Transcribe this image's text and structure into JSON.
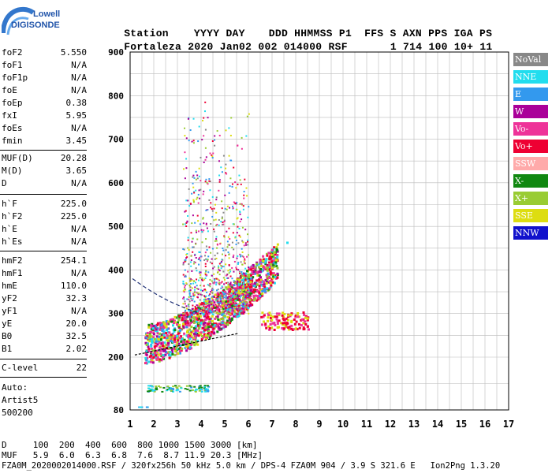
{
  "logo": {
    "line1": "Lowell",
    "line2": "DIGISONDE"
  },
  "header": {
    "labels": [
      "Station",
      "YYYY",
      "DAY",
      "DDD",
      "HHMMSS",
      "P1",
      "FFS",
      "S",
      "AXN",
      "PPS",
      "IGA",
      "PS"
    ],
    "values": [
      "Fortaleza",
      "2020",
      "Jan02",
      "002",
      "014000",
      "RSF",
      "",
      "1",
      "714",
      "100",
      "10+",
      "11"
    ]
  },
  "params_group1": [
    {
      "label": "foF2",
      "value": "5.550"
    },
    {
      "label": "foF1",
      "value": "N/A"
    },
    {
      "label": "foF1p",
      "value": "N/A"
    },
    {
      "label": "foE",
      "value": "N/A"
    },
    {
      "label": "foEp",
      "value": "0.38"
    },
    {
      "label": "fxI",
      "value": "5.95"
    },
    {
      "label": "foEs",
      "value": "N/A"
    },
    {
      "label": "fmin",
      "value": "3.45"
    }
  ],
  "params_group2": [
    {
      "label": "MUF(D)",
      "value": "20.28"
    },
    {
      "label": "M(D)",
      "value": "3.65"
    },
    {
      "label": "D",
      "value": "N/A"
    }
  ],
  "params_group3": [
    {
      "label": "h`F",
      "value": "225.0"
    },
    {
      "label": "h`F2",
      "value": "225.0"
    },
    {
      "label": "h`E",
      "value": "N/A"
    },
    {
      "label": "h`Es",
      "value": "N/A"
    }
  ],
  "params_group4": [
    {
      "label": "hmF2",
      "value": "254.1"
    },
    {
      "label": "hmF1",
      "value": "N/A"
    },
    {
      "label": "hmE",
      "value": "110.0"
    },
    {
      "label": "yF2",
      "value": "32.3"
    },
    {
      "label": "yF1",
      "value": "N/A"
    },
    {
      "label": "yE",
      "value": "20.0"
    },
    {
      "label": "B0",
      "value": "32.5"
    },
    {
      "label": "B1",
      "value": "2.02"
    }
  ],
  "params_group5": [
    {
      "label": "C-level",
      "value": "22"
    }
  ],
  "autoscaling": {
    "line1": "Auto:",
    "line2": "Artist5",
    "line3": "500200"
  },
  "axes": {
    "y_ticks": [
      "900",
      "800",
      "700",
      "600",
      "500",
      "400",
      "300",
      "200",
      "80"
    ],
    "x_ticks": [
      "1",
      "2",
      "3",
      "4",
      "5",
      "6",
      "7",
      "8",
      "9",
      "10",
      "11",
      "12",
      "13",
      "14",
      "15",
      "16",
      "17"
    ]
  },
  "legend": [
    {
      "label": "NoVal",
      "bg": "#888888",
      "fg": "#ffffff"
    },
    {
      "label": "NNE",
      "bg": "#22ddee",
      "fg": "#ffffff"
    },
    {
      "label": "E",
      "bg": "#3399ee",
      "fg": "#ffffff"
    },
    {
      "label": "W",
      "bg": "#aa0099",
      "fg": "#ffffff"
    },
    {
      "label": "Vo-",
      "bg": "#ee3399",
      "fg": "#ffffff"
    },
    {
      "label": "Vo+",
      "bg": "#ee0033",
      "fg": "#ffffff"
    },
    {
      "label": "SSW",
      "bg": "#ffaaaa",
      "fg": "#ffffff"
    },
    {
      "label": "X-",
      "bg": "#118811",
      "fg": "#ffffff"
    },
    {
      "label": "X+",
      "bg": "#99cc33",
      "fg": "#ffffff"
    },
    {
      "label": "SSE",
      "bg": "#dddd11",
      "fg": "#ffffff"
    },
    {
      "label": "NNW",
      "bg": "#1111cc",
      "fg": "#ffffff"
    }
  ],
  "footer": {
    "d_line": "D     100  200  400  600  800 1000 1500 3000 [km]",
    "muf_line": "MUF   5.9  6.0  6.3  6.8  7.6  8.7 11.9 20.3 [MHz]",
    "file_line": "FZA0M_2020002014000.RSF / 320fx256h 50 kHz 5.0 km / DPS-4 FZA0M 904 / 3.9 S 321.6 E   Ion2Png 1.3.20"
  }
}
